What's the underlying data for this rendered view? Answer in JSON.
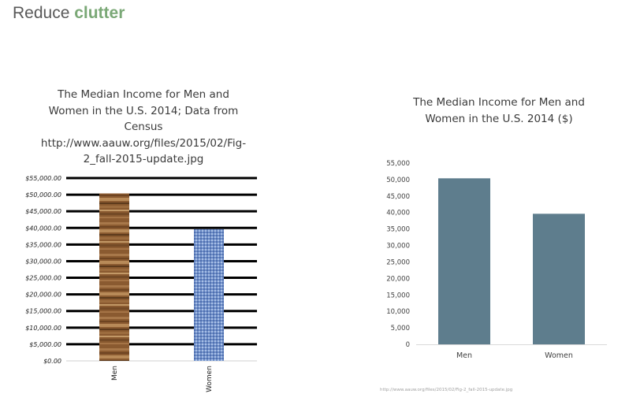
{
  "slide": {
    "title_prefix": "Reduce ",
    "title_emphasis": "clutter",
    "accent_color": "#7aa876"
  },
  "source_note": "http://www.aauw.org/files/2015/02/Fig-2_fall-2015-update.jpg",
  "chart_data": [
    {
      "type": "bar",
      "title": "The Median Income for Men and Women in the U.S. 2014; Data from Census http://www.aauw.org/files/2015/02/Fig-2_fall-2015-update.jpg",
      "categories": [
        "Men",
        "Women"
      ],
      "values": [
        50383,
        39621
      ],
      "ylim": [
        0,
        55000
      ],
      "yticks": [
        0,
        5000,
        10000,
        15000,
        20000,
        25000,
        30000,
        35000,
        40000,
        45000,
        50000,
        55000
      ],
      "ytick_labels": [
        "$0.00",
        "$5,000.00",
        "$10,000.00",
        "$15,000.00",
        "$20,000.00",
        "$25,000.00",
        "$30,000.00",
        "$35,000.00",
        "$40,000.00",
        "$45,000.00",
        "$50,000.00",
        "$55,000.00"
      ],
      "grid": true,
      "xlabel": "",
      "ylabel": "",
      "bar_fills": [
        "wood texture",
        "blue fabric texture"
      ],
      "colors": [
        "#8a5a30",
        "#6f8fc8"
      ]
    },
    {
      "type": "bar",
      "title": "The Median Income for Men and Women in the U.S. 2014 ($)",
      "categories": [
        "Men",
        "Women"
      ],
      "values": [
        50383,
        39621
      ],
      "ylim": [
        0,
        55000
      ],
      "yticks": [
        0,
        5000,
        10000,
        15000,
        20000,
        25000,
        30000,
        35000,
        40000,
        45000,
        50000,
        55000
      ],
      "ytick_labels": [
        "0",
        "5,000",
        "10,000",
        "15,000",
        "20,000",
        "25,000",
        "30,000",
        "35,000",
        "40,000",
        "45,000",
        "50,000",
        "55,000"
      ],
      "grid": false,
      "xlabel": "",
      "ylabel": "",
      "colors": [
        "#5e7d8d"
      ]
    }
  ]
}
